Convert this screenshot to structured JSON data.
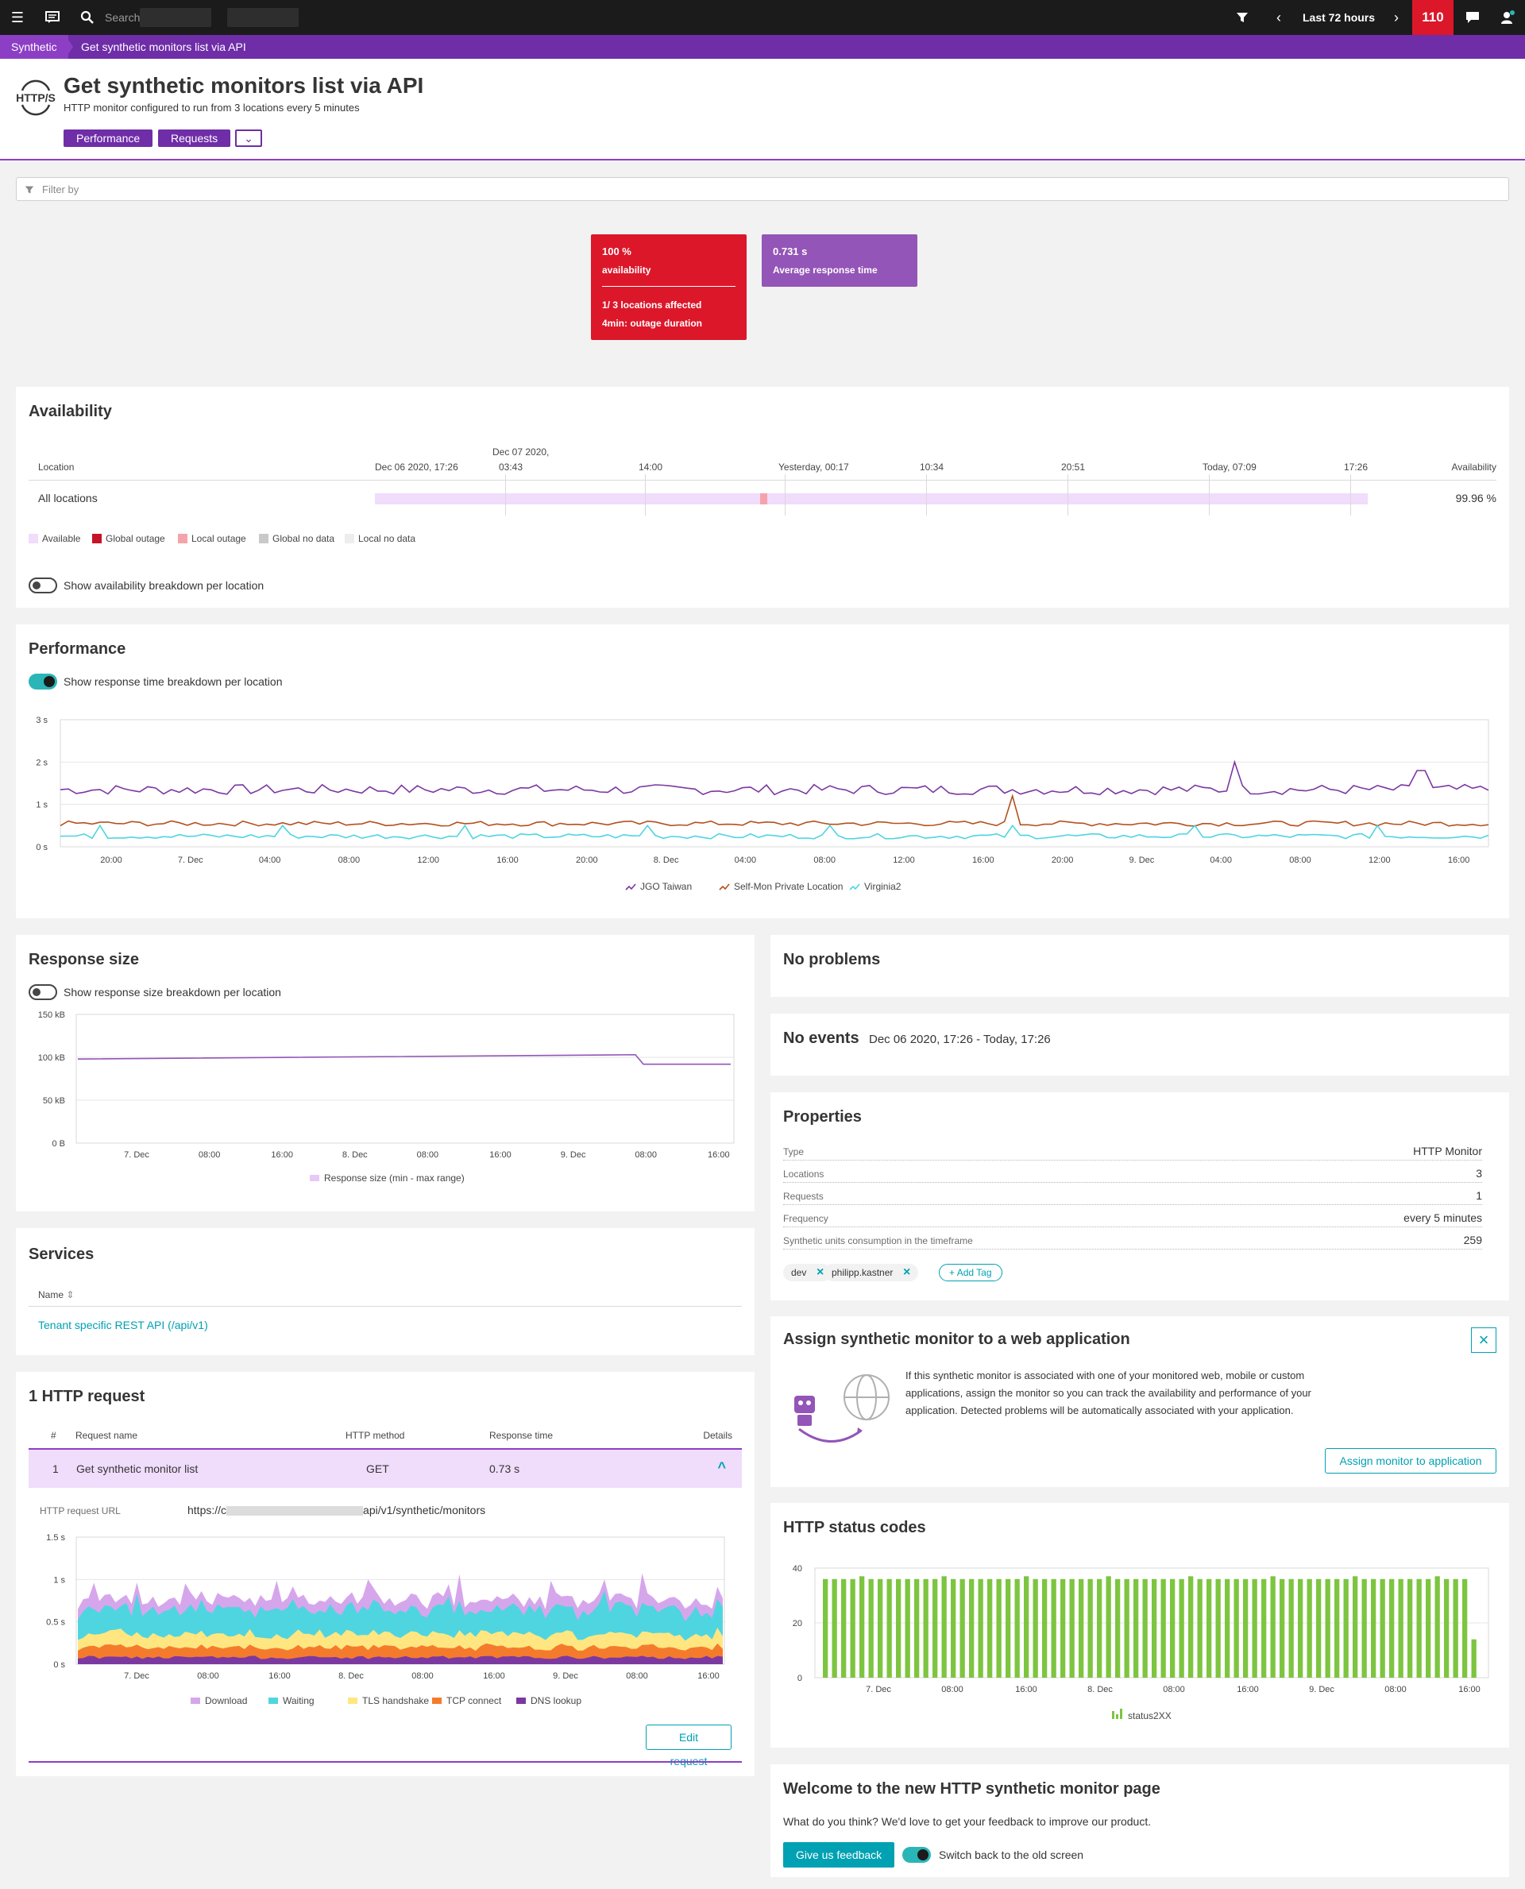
{
  "topbar": {
    "search_placeholder": "Search",
    "timeframe": "Last 72 hours",
    "problems_count": "110"
  },
  "breadcrumb": [
    "Synthetic",
    "Get synthetic monitors list via API"
  ],
  "header": {
    "logo_text": "HTTP/S",
    "title": "Get synthetic monitors list via API",
    "subtitle": "HTTP monitor configured to run from 3 locations every 5 minutes",
    "buttons": [
      "Performance",
      "Requests"
    ]
  },
  "filter": {
    "placeholder": "Filter by"
  },
  "tiles": {
    "availability": {
      "value": "100 %",
      "label": "availability",
      "affected": "1/ 3 locations affected",
      "outage": "4min: outage duration"
    },
    "response": {
      "value": "0.731 s",
      "label": "Average response time"
    }
  },
  "availability": {
    "title": "Availability",
    "col_location": "Location",
    "col_availability": "Availability",
    "timeline_top": "Dec 07 2020,",
    "timeline": [
      "Dec 06 2020, 17:26",
      "03:43",
      "14:00",
      "Yesterday, 00:17",
      "10:34",
      "20:51",
      "Today, 07:09",
      "17:26"
    ],
    "row_label": "All locations",
    "row_value": "99.96 %",
    "legend": [
      {
        "label": "Available",
        "color": "#f0dcfb"
      },
      {
        "label": "Global outage",
        "color": "#c41425"
      },
      {
        "label": "Local outage",
        "color": "#f5a3ab"
      },
      {
        "label": "Global no data",
        "color": "#c9c9c9"
      },
      {
        "label": "Local no data",
        "color": "#ededed"
      }
    ],
    "toggle_label": "Show availability breakdown per location"
  },
  "performance": {
    "title": "Performance",
    "toggle_label": "Show response time breakdown per location",
    "y_ticks": [
      "3 s",
      "2 s",
      "1 s",
      "0 s"
    ],
    "x_ticks": [
      "20:00",
      "7. Dec",
      "04:00",
      "08:00",
      "12:00",
      "16:00",
      "20:00",
      "8. Dec",
      "04:00",
      "08:00",
      "12:00",
      "16:00",
      "20:00",
      "9. Dec",
      "04:00",
      "08:00",
      "12:00",
      "16:00"
    ],
    "legend": [
      {
        "label": "JGO Taiwan",
        "color": "#7c38a1"
      },
      {
        "label": "Self-Mon Private Location",
        "color": "#b4501e"
      },
      {
        "label": "Virginia2",
        "color": "#4fd5e0"
      }
    ]
  },
  "response_size": {
    "title": "Response size",
    "toggle_label": "Show response size breakdown per location",
    "y_ticks": [
      "150 kB",
      "100 kB",
      "50 kB",
      "0 B"
    ],
    "x_ticks": [
      "7. Dec",
      "08:00",
      "16:00",
      "8. Dec",
      "08:00",
      "16:00",
      "9. Dec",
      "08:00",
      "16:00"
    ],
    "legend": "Response size (min - max range)",
    "legend_color": "#e8c8f6"
  },
  "services": {
    "title": "Services",
    "col_name": "Name",
    "rows": [
      "Tenant specific REST API (/api/v1)"
    ]
  },
  "http_request": {
    "title": "1 HTTP request",
    "cols": [
      "#",
      "Request name",
      "HTTP method",
      "Response time",
      "Details"
    ],
    "row": {
      "num": "1",
      "name": "Get synthetic monitor list",
      "method": "GET",
      "time": "0.73 s"
    },
    "url_label": "HTTP request URL",
    "url_prefix": "https://c",
    "url_suffix": "api/v1/synthetic/monitors",
    "y_ticks": [
      "1.5 s",
      "1 s",
      "0.5 s",
      "0 s"
    ],
    "x_ticks": [
      "7. Dec",
      "08:00",
      "16:00",
      "8. Dec",
      "08:00",
      "16:00",
      "9. Dec",
      "08:00",
      "16:00"
    ],
    "legend": [
      {
        "label": "Download",
        "color": "#d6a6ec"
      },
      {
        "label": "Waiting",
        "color": "#4fd5e0"
      },
      {
        "label": "TLS handshake",
        "color": "#ffe680"
      },
      {
        "label": "TCP connect",
        "color": "#f57b2c"
      },
      {
        "label": "DNS lookup",
        "color": "#7c38a1"
      }
    ],
    "edit_button": "Edit request"
  },
  "no_problems": {
    "title": "No problems"
  },
  "no_events": {
    "title": "No events",
    "range": "Dec 06 2020, 17:26 - Today, 17:26"
  },
  "properties": {
    "title": "Properties",
    "rows": [
      {
        "k": "Type",
        "v": "HTTP Monitor"
      },
      {
        "k": "Locations",
        "v": "3"
      },
      {
        "k": "Requests",
        "v": "1"
      },
      {
        "k": "Frequency",
        "v": "every 5 minutes"
      },
      {
        "k": "Synthetic units consumption in the timeframe",
        "v": "259"
      }
    ],
    "tags": [
      "dev",
      "philipp.kastner"
    ],
    "add_tag": "Add Tag"
  },
  "assign": {
    "title": "Assign synthetic monitor to a web application",
    "text1": "If this synthetic monitor is associated with one of your monitored web, mobile or custom",
    "text2": "applications, assign the monitor so you can track the availability and performance of your",
    "text3": "application. Detected problems will be automatically associated with your application.",
    "button": "Assign monitor to application"
  },
  "status_codes": {
    "title": "HTTP status codes",
    "y_ticks": [
      "40",
      "20",
      "0"
    ],
    "x_ticks": [
      "7. Dec",
      "08:00",
      "16:00",
      "8. Dec",
      "08:00",
      "16:00",
      "9. Dec",
      "08:00",
      "16:00"
    ],
    "legend": "status2XX",
    "bar_color": "#7dc540"
  },
  "feedback": {
    "title": "Welcome to the new HTTP synthetic monitor page",
    "text": "What do you think? We'd love to get your feedback to improve our product.",
    "button": "Give us feedback",
    "toggle_label": "Switch back to the old screen"
  },
  "chart_data": [
    {
      "type": "line",
      "ylabel": "",
      "ylim": [
        0,
        3
      ],
      "x": "Dec 06 2020, 17:26 - Today, 17:26 (5-min samples)",
      "series": [
        {
          "name": "JGO Taiwan",
          "approx_mean": 1.4,
          "peaks": [
            2.0,
            1.8
          ]
        },
        {
          "name": "Self-Mon Private Location",
          "approx_mean": 0.55,
          "peaks": [
            1.2
          ]
        },
        {
          "name": "Virginia2",
          "approx_mean": 0.25,
          "peaks": [
            0.5
          ]
        }
      ]
    },
    {
      "type": "line",
      "ylim": [
        0,
        150
      ],
      "series": [
        {
          "name": "Response size (min - max range)",
          "start": 98,
          "end_before_drop": 103,
          "after_drop": 92
        }
      ]
    },
    {
      "type": "area",
      "ylim": [
        0,
        1.5
      ],
      "series": [
        {
          "name": "DNS lookup",
          "approx": 0.08
        },
        {
          "name": "TCP connect",
          "approx": 0.12
        },
        {
          "name": "TLS handshake",
          "approx": 0.15
        },
        {
          "name": "Waiting",
          "approx": 0.3
        },
        {
          "name": "Download",
          "approx": 0.12
        }
      ]
    },
    {
      "type": "bar",
      "ylim": [
        0,
        40
      ],
      "series": [
        {
          "name": "status2XX",
          "value": 36,
          "last_value": 14,
          "count": 72
        }
      ]
    }
  ]
}
